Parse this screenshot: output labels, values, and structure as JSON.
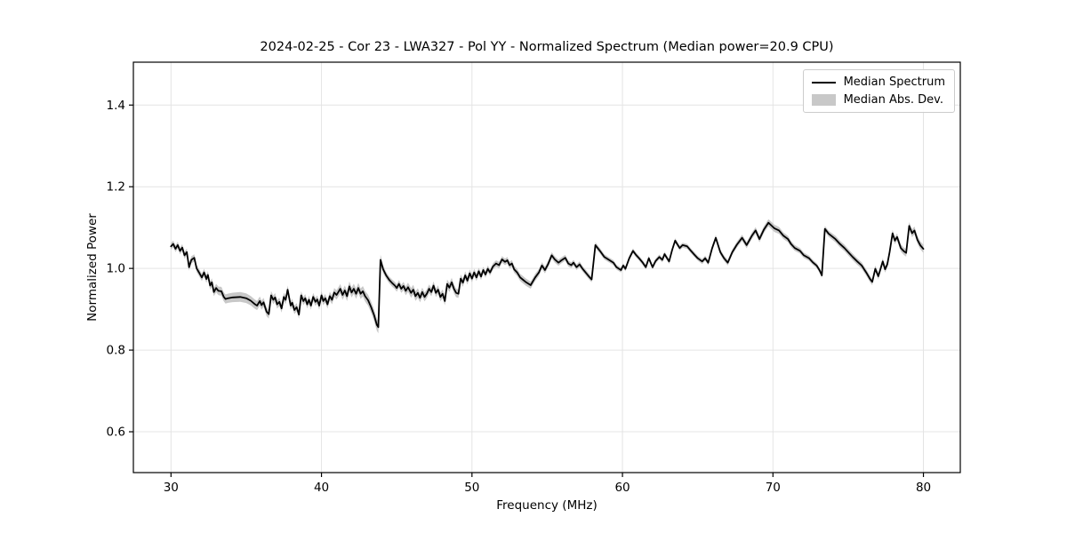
{
  "figure": {
    "title": "2024-02-25 - Cor 23 - LWA327 - Pol YY - Normalized Spectrum (Median power=20.9 CPU)",
    "xlabel": "Frequency (MHz)",
    "ylabel": "Normalized Power",
    "legend_items": [
      {
        "label": "Median Spectrum",
        "type": "line",
        "color": "#000000"
      },
      {
        "label": "Median Abs. Dev.",
        "type": "patch",
        "color": "#c8c8c8"
      }
    ]
  },
  "colors": {
    "line": "#000000",
    "band": "#c8c8c8",
    "grid": "#e4e4e4",
    "spine": "#000000",
    "background": "#ffffff"
  },
  "chart_data": {
    "type": "line",
    "title": "2024-02-25 - Cor 23 - LWA327 - Pol YY - Normalized Spectrum (Median power=20.9 CPU)",
    "xlabel": "Frequency (MHz)",
    "ylabel": "Normalized Power",
    "xlim": [
      27.5,
      82.45
    ],
    "ylim": [
      0.5,
      1.505
    ],
    "xticks": [
      30,
      40,
      50,
      60,
      70,
      80
    ],
    "xtick_labels": [
      "30",
      "40",
      "50",
      "60",
      "70",
      "80"
    ],
    "yticks": [
      0.6,
      0.8,
      1.0,
      1.2,
      1.4
    ],
    "ytick_labels": [
      "0.6",
      "0.8",
      "1.0",
      "1.2",
      "1.4"
    ],
    "grid": true,
    "legend_position": "upper right",
    "series": [
      {
        "name": "Median Spectrum",
        "color": "#000000",
        "points": [
          [
            30.0,
            1.054
          ],
          [
            30.15,
            1.06
          ],
          [
            30.3,
            1.048
          ],
          [
            30.45,
            1.057
          ],
          [
            30.6,
            1.043
          ],
          [
            30.75,
            1.051
          ],
          [
            30.9,
            1.032
          ],
          [
            31.05,
            1.04
          ],
          [
            31.2,
            1.003
          ],
          [
            31.35,
            1.021
          ],
          [
            31.55,
            1.026
          ],
          [
            31.7,
            1.0
          ],
          [
            31.85,
            0.991
          ],
          [
            32.05,
            0.978
          ],
          [
            32.2,
            0.99
          ],
          [
            32.35,
            0.974
          ],
          [
            32.45,
            0.984
          ],
          [
            32.6,
            0.958
          ],
          [
            32.72,
            0.966
          ],
          [
            32.85,
            0.942
          ],
          [
            33.0,
            0.952
          ],
          [
            33.15,
            0.945
          ],
          [
            33.35,
            0.944
          ],
          [
            33.5,
            0.931
          ],
          [
            33.62,
            0.925
          ],
          [
            33.8,
            0.927
          ],
          [
            34.1,
            0.929
          ],
          [
            34.6,
            0.93
          ],
          [
            35.0,
            0.927
          ],
          [
            35.3,
            0.921
          ],
          [
            35.55,
            0.913
          ],
          [
            35.72,
            0.909
          ],
          [
            35.9,
            0.92
          ],
          [
            36.02,
            0.91
          ],
          [
            36.15,
            0.917
          ],
          [
            36.35,
            0.894
          ],
          [
            36.5,
            0.888
          ],
          [
            36.65,
            0.934
          ],
          [
            36.8,
            0.923
          ],
          [
            36.92,
            0.929
          ],
          [
            37.05,
            0.912
          ],
          [
            37.2,
            0.918
          ],
          [
            37.35,
            0.902
          ],
          [
            37.5,
            0.93
          ],
          [
            37.62,
            0.923
          ],
          [
            37.75,
            0.948
          ],
          [
            37.95,
            0.909
          ],
          [
            38.05,
            0.916
          ],
          [
            38.2,
            0.898
          ],
          [
            38.35,
            0.905
          ],
          [
            38.5,
            0.887
          ],
          [
            38.65,
            0.934
          ],
          [
            38.8,
            0.92
          ],
          [
            38.92,
            0.927
          ],
          [
            39.05,
            0.912
          ],
          [
            39.17,
            0.923
          ],
          [
            39.3,
            0.909
          ],
          [
            39.45,
            0.93
          ],
          [
            39.6,
            0.918
          ],
          [
            39.72,
            0.924
          ],
          [
            39.85,
            0.909
          ],
          [
            40.0,
            0.934
          ],
          [
            40.12,
            0.92
          ],
          [
            40.25,
            0.927
          ],
          [
            40.4,
            0.912
          ],
          [
            40.55,
            0.932
          ],
          [
            40.7,
            0.923
          ],
          [
            40.85,
            0.941
          ],
          [
            41.0,
            0.935
          ],
          [
            41.1,
            0.941
          ],
          [
            41.25,
            0.95
          ],
          [
            41.4,
            0.935
          ],
          [
            41.55,
            0.946
          ],
          [
            41.7,
            0.932
          ],
          [
            41.85,
            0.956
          ],
          [
            42.0,
            0.941
          ],
          [
            42.15,
            0.95
          ],
          [
            42.3,
            0.938
          ],
          [
            42.45,
            0.952
          ],
          [
            42.6,
            0.938
          ],
          [
            42.75,
            0.944
          ],
          [
            42.9,
            0.932
          ],
          [
            43.1,
            0.922
          ],
          [
            43.3,
            0.905
          ],
          [
            43.5,
            0.885
          ],
          [
            43.68,
            0.862
          ],
          [
            43.78,
            0.856
          ],
          [
            43.92,
            1.021
          ],
          [
            44.1,
            0.998
          ],
          [
            44.3,
            0.983
          ],
          [
            44.5,
            0.972
          ],
          [
            44.7,
            0.964
          ],
          [
            44.88,
            0.958
          ],
          [
            45.0,
            0.952
          ],
          [
            45.15,
            0.962
          ],
          [
            45.3,
            0.95
          ],
          [
            45.45,
            0.957
          ],
          [
            45.6,
            0.945
          ],
          [
            45.75,
            0.954
          ],
          [
            45.95,
            0.94
          ],
          [
            46.1,
            0.948
          ],
          [
            46.25,
            0.932
          ],
          [
            46.4,
            0.94
          ],
          [
            46.55,
            0.928
          ],
          [
            46.7,
            0.942
          ],
          [
            46.85,
            0.93
          ],
          [
            47.0,
            0.938
          ],
          [
            47.15,
            0.95
          ],
          [
            47.3,
            0.942
          ],
          [
            47.45,
            0.958
          ],
          [
            47.6,
            0.94
          ],
          [
            47.75,
            0.948
          ],
          [
            47.9,
            0.93
          ],
          [
            48.05,
            0.938
          ],
          [
            48.2,
            0.92
          ],
          [
            48.35,
            0.962
          ],
          [
            48.5,
            0.953
          ],
          [
            48.65,
            0.966
          ],
          [
            48.8,
            0.95
          ],
          [
            48.95,
            0.94
          ],
          [
            49.1,
            0.938
          ],
          [
            49.25,
            0.975
          ],
          [
            49.4,
            0.965
          ],
          [
            49.55,
            0.983
          ],
          [
            49.7,
            0.97
          ],
          [
            49.85,
            0.988
          ],
          [
            50.0,
            0.975
          ],
          [
            50.15,
            0.99
          ],
          [
            50.3,
            0.978
          ],
          [
            50.45,
            0.993
          ],
          [
            50.6,
            0.98
          ],
          [
            50.75,
            0.996
          ],
          [
            50.9,
            0.985
          ],
          [
            51.05,
            0.999
          ],
          [
            51.2,
            0.99
          ],
          [
            51.4,
            1.005
          ],
          [
            51.6,
            1.012
          ],
          [
            51.8,
            1.008
          ],
          [
            52.0,
            1.022
          ],
          [
            52.2,
            1.016
          ],
          [
            52.35,
            1.02
          ],
          [
            52.5,
            1.008
          ],
          [
            52.65,
            1.012
          ],
          [
            52.8,
            0.998
          ],
          [
            53.0,
            0.99
          ],
          [
            53.2,
            0.978
          ],
          [
            53.4,
            0.972
          ],
          [
            53.6,
            0.966
          ],
          [
            53.9,
            0.959
          ],
          [
            54.2,
            0.978
          ],
          [
            54.45,
            0.99
          ],
          [
            54.65,
            1.007
          ],
          [
            54.85,
            0.996
          ],
          [
            55.05,
            1.01
          ],
          [
            55.3,
            1.032
          ],
          [
            55.5,
            1.022
          ],
          [
            55.75,
            1.014
          ],
          [
            55.95,
            1.02
          ],
          [
            56.2,
            1.026
          ],
          [
            56.4,
            1.012
          ],
          [
            56.6,
            1.008
          ],
          [
            56.75,
            1.014
          ],
          [
            56.95,
            1.003
          ],
          [
            57.15,
            1.01
          ],
          [
            57.35,
            0.999
          ],
          [
            57.6,
            0.988
          ],
          [
            57.8,
            0.979
          ],
          [
            57.95,
            0.973
          ],
          [
            58.2,
            1.057
          ],
          [
            58.5,
            1.043
          ],
          [
            58.8,
            1.028
          ],
          [
            59.1,
            1.021
          ],
          [
            59.4,
            1.014
          ],
          [
            59.6,
            1.003
          ],
          [
            59.9,
            0.996
          ],
          [
            60.05,
            1.007
          ],
          [
            60.2,
            0.999
          ],
          [
            60.45,
            1.025
          ],
          [
            60.7,
            1.043
          ],
          [
            60.9,
            1.033
          ],
          [
            61.1,
            1.025
          ],
          [
            61.35,
            1.014
          ],
          [
            61.55,
            1.003
          ],
          [
            61.75,
            1.025
          ],
          [
            62.0,
            1.003
          ],
          [
            62.2,
            1.018
          ],
          [
            62.45,
            1.028
          ],
          [
            62.65,
            1.021
          ],
          [
            62.8,
            1.035
          ],
          [
            63.1,
            1.017
          ],
          [
            63.3,
            1.045
          ],
          [
            63.5,
            1.068
          ],
          [
            63.8,
            1.05
          ],
          [
            64.0,
            1.057
          ],
          [
            64.3,
            1.054
          ],
          [
            64.55,
            1.043
          ],
          [
            64.75,
            1.035
          ],
          [
            65.0,
            1.025
          ],
          [
            65.3,
            1.017
          ],
          [
            65.5,
            1.025
          ],
          [
            65.7,
            1.014
          ],
          [
            65.95,
            1.048
          ],
          [
            66.2,
            1.075
          ],
          [
            66.5,
            1.04
          ],
          [
            66.75,
            1.025
          ],
          [
            67.0,
            1.014
          ],
          [
            67.3,
            1.04
          ],
          [
            67.6,
            1.058
          ],
          [
            67.95,
            1.075
          ],
          [
            68.25,
            1.057
          ],
          [
            68.6,
            1.08
          ],
          [
            68.85,
            1.093
          ],
          [
            69.1,
            1.072
          ],
          [
            69.4,
            1.095
          ],
          [
            69.7,
            1.112
          ],
          [
            69.9,
            1.105
          ],
          [
            70.1,
            1.098
          ],
          [
            70.4,
            1.093
          ],
          [
            70.7,
            1.08
          ],
          [
            71.0,
            1.072
          ],
          [
            71.2,
            1.06
          ],
          [
            71.45,
            1.05
          ],
          [
            71.8,
            1.043
          ],
          [
            72.05,
            1.032
          ],
          [
            72.4,
            1.025
          ],
          [
            72.65,
            1.015
          ],
          [
            72.9,
            1.007
          ],
          [
            73.1,
            0.995
          ],
          [
            73.25,
            0.983
          ],
          [
            73.45,
            1.097
          ],
          [
            73.7,
            1.085
          ],
          [
            74.15,
            1.072
          ],
          [
            74.45,
            1.06
          ],
          [
            74.75,
            1.05
          ],
          [
            75.0,
            1.04
          ],
          [
            75.3,
            1.028
          ],
          [
            75.6,
            1.017
          ],
          [
            75.9,
            1.007
          ],
          [
            76.2,
            0.99
          ],
          [
            76.45,
            0.974
          ],
          [
            76.6,
            0.967
          ],
          [
            76.8,
            0.999
          ],
          [
            77.0,
            0.981
          ],
          [
            77.15,
            0.999
          ],
          [
            77.3,
            1.017
          ],
          [
            77.45,
            0.998
          ],
          [
            77.6,
            1.01
          ],
          [
            77.75,
            1.04
          ],
          [
            77.95,
            1.086
          ],
          [
            78.1,
            1.068
          ],
          [
            78.25,
            1.077
          ],
          [
            78.5,
            1.05
          ],
          [
            78.7,
            1.042
          ],
          [
            78.85,
            1.038
          ],
          [
            79.05,
            1.104
          ],
          [
            79.25,
            1.086
          ],
          [
            79.4,
            1.093
          ],
          [
            79.6,
            1.07
          ],
          [
            79.8,
            1.056
          ],
          [
            80.0,
            1.048
          ]
        ]
      },
      {
        "name": "Median Abs. Dev.",
        "color": "#c8c8c8",
        "band_halfwidth": [
          [
            30,
            0.008
          ],
          [
            32,
            0.009
          ],
          [
            33.5,
            0.011
          ],
          [
            34.5,
            0.012
          ],
          [
            36,
            0.011
          ],
          [
            38,
            0.01
          ],
          [
            40,
            0.01
          ],
          [
            41.5,
            0.012
          ],
          [
            43,
            0.013
          ],
          [
            43.8,
            0.015
          ],
          [
            44.2,
            0.008
          ],
          [
            45,
            0.009
          ],
          [
            46,
            0.012
          ],
          [
            47.5,
            0.01
          ],
          [
            48.5,
            0.011
          ],
          [
            49.5,
            0.01
          ],
          [
            51,
            0.008
          ],
          [
            52,
            0.008
          ],
          [
            53.5,
            0.009
          ],
          [
            55,
            0.008
          ],
          [
            56.5,
            0.007
          ],
          [
            58,
            0.007
          ],
          [
            59.5,
            0.006
          ],
          [
            61,
            0.006
          ],
          [
            63,
            0.006
          ],
          [
            65,
            0.006
          ],
          [
            67,
            0.007
          ],
          [
            69,
            0.008
          ],
          [
            70,
            0.009
          ],
          [
            71.5,
            0.007
          ],
          [
            73,
            0.006
          ],
          [
            74,
            0.008
          ],
          [
            75.5,
            0.008
          ],
          [
            77,
            0.008
          ],
          [
            78.5,
            0.009
          ],
          [
            80,
            0.01
          ]
        ]
      }
    ]
  }
}
